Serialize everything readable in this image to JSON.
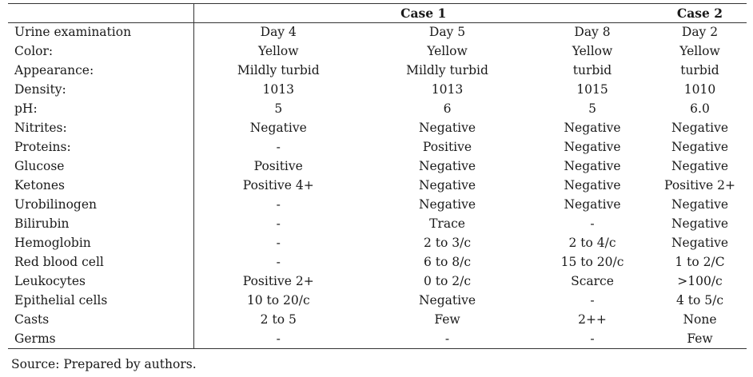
{
  "header": {
    "case1": "Case 1",
    "case2": "Case 2"
  },
  "rows": [
    {
      "label": "Urine examination",
      "values": [
        "Day 4",
        "Day 5",
        "Day 8",
        "Day 2"
      ]
    },
    {
      "label": "Color:",
      "values": [
        "Yellow",
        "Yellow",
        "Yellow",
        "Yellow"
      ]
    },
    {
      "label": "Appearance:",
      "values": [
        "Mildly turbid",
        "Mildly turbid",
        "turbid",
        "turbid"
      ]
    },
    {
      "label": "Density:",
      "values": [
        "1013",
        "1013",
        "1015",
        "1010"
      ]
    },
    {
      "label": "pH:",
      "values": [
        "5",
        "6",
        "5",
        "6.0"
      ]
    },
    {
      "label": "Nitrites:",
      "values": [
        "Negative",
        "Negative",
        "Negative",
        "Negative"
      ]
    },
    {
      "label": "Proteins:",
      "values": [
        "-",
        "Positive",
        "Negative",
        "Negative"
      ]
    },
    {
      "label": "Glucose",
      "values": [
        "Positive",
        "Negative",
        "Negative",
        "Negative"
      ]
    },
    {
      "label": "Ketones",
      "values": [
        "Positive 4+",
        "Negative",
        "Negative",
        "Positive 2+"
      ]
    },
    {
      "label": "Urobilinogen",
      "values": [
        "-",
        "Negative",
        "Negative",
        "Negative"
      ]
    },
    {
      "label": "Bilirubin",
      "values": [
        "-",
        "Trace",
        "-",
        "Negative"
      ]
    },
    {
      "label": "Hemoglobin",
      "values": [
        "-",
        "2 to 3/c",
        "2 to 4/c",
        "Negative"
      ]
    },
    {
      "label": "Red blood cell",
      "values": [
        "-",
        "6 to 8/c",
        "15 to 20/c",
        "1 to 2/C"
      ]
    },
    {
      "label": "Leukocytes",
      "values": [
        "Positive 2+",
        "0 to 2/c",
        "Scarce",
        ">100/c"
      ]
    },
    {
      "label": "Epithelial cells",
      "values": [
        "10 to 20/c",
        "Negative",
        "-",
        "4 to 5/c"
      ]
    },
    {
      "label": "Casts",
      "values": [
        "2 to 5",
        "Few",
        "2++",
        "None"
      ]
    },
    {
      "label": "Germs",
      "values": [
        "-",
        "-",
        "-",
        "Few"
      ]
    }
  ],
  "source": "Source: Prepared by authors."
}
